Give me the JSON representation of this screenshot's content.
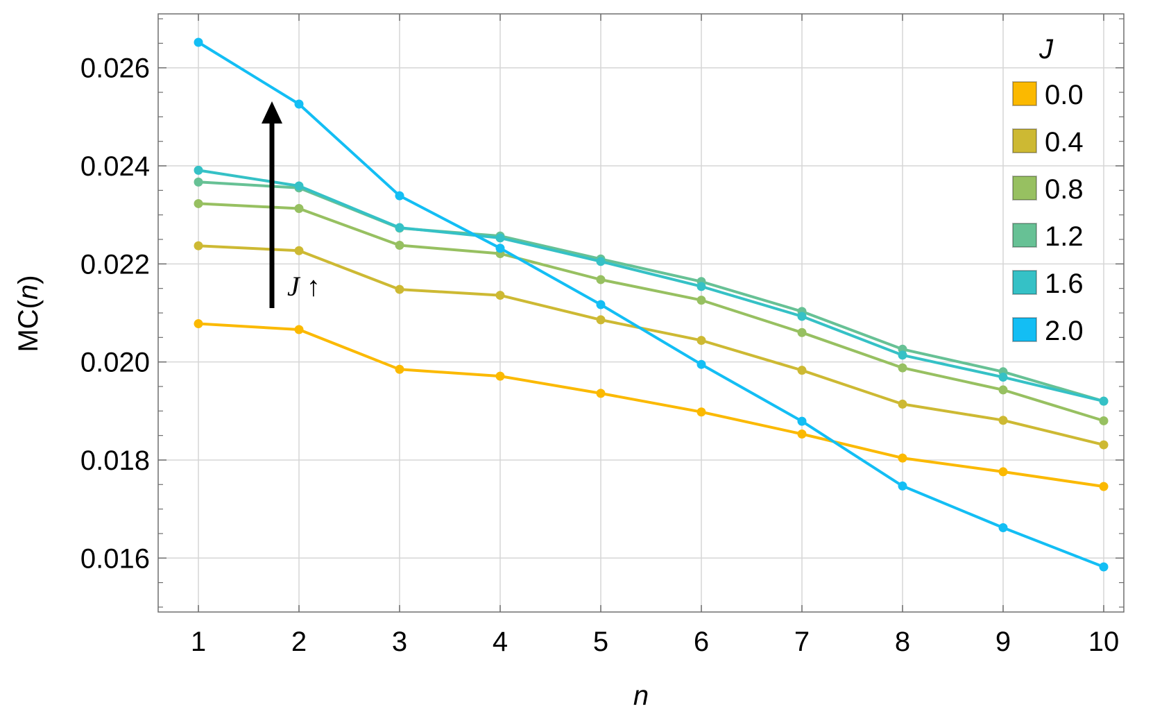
{
  "chart_data": {
    "type": "line",
    "title": "",
    "xlabel": "n",
    "ylabel": "MC(n)",
    "x": [
      1,
      2,
      3,
      4,
      5,
      6,
      7,
      8,
      9,
      10
    ],
    "xlim": [
      0.6,
      10.2
    ],
    "ylim": [
      0.0149,
      0.0271
    ],
    "x_ticks": [
      "1",
      "2",
      "3",
      "4",
      "5",
      "6",
      "7",
      "8",
      "9",
      "10"
    ],
    "y_ticks": [
      "0.016",
      "0.018",
      "0.020",
      "0.022",
      "0.024",
      "0.026"
    ],
    "grid": true,
    "legend": {
      "title": "J",
      "placement": "top-right"
    },
    "annotation": {
      "text": "J ↑",
      "arrow": "up"
    },
    "series": [
      {
        "name": "0.0",
        "color": "#FBB900",
        "values": [
          0.02078,
          0.02066,
          0.01985,
          0.01971,
          0.01936,
          0.01898,
          0.01853,
          0.01804,
          0.01776,
          0.01746
        ]
      },
      {
        "name": "0.4",
        "color": "#CDB933",
        "values": [
          0.02237,
          0.02227,
          0.02148,
          0.02136,
          0.02086,
          0.02044,
          0.01983,
          0.01914,
          0.01881,
          0.01831
        ]
      },
      {
        "name": "0.8",
        "color": "#97C061",
        "values": [
          0.02323,
          0.02313,
          0.02238,
          0.02221,
          0.02168,
          0.02126,
          0.0206,
          0.01988,
          0.01943,
          0.0188
        ]
      },
      {
        "name": "1.2",
        "color": "#67C195",
        "values": [
          0.02367,
          0.02355,
          0.02273,
          0.02257,
          0.0221,
          0.02164,
          0.02103,
          0.02026,
          0.0198,
          0.0192
        ]
      },
      {
        "name": "1.6",
        "color": "#35C1C6",
        "values": [
          0.02391,
          0.02359,
          0.02274,
          0.02253,
          0.02205,
          0.02154,
          0.02093,
          0.02014,
          0.01969,
          0.0192
        ]
      },
      {
        "name": "2.0",
        "color": "#13BEF4",
        "values": [
          0.02652,
          0.02526,
          0.02339,
          0.02232,
          0.02117,
          0.01995,
          0.01879,
          0.01747,
          0.01662,
          0.01582
        ]
      }
    ]
  }
}
